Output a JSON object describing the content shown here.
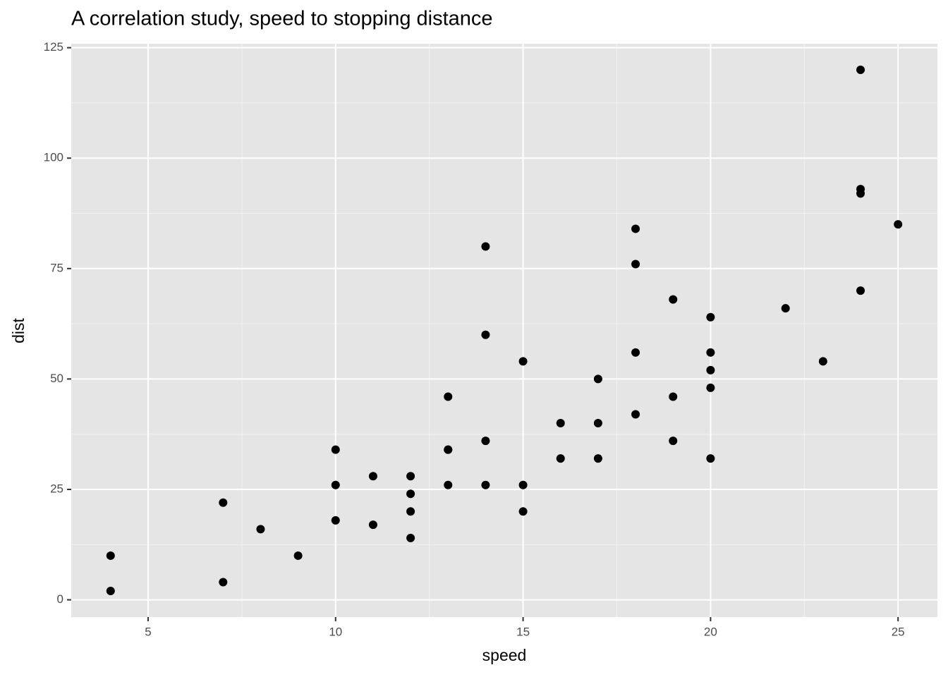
{
  "chart_data": {
    "type": "scatter",
    "title": "A correlation study, speed to stopping distance",
    "x_label": "speed",
    "y_label": "dist",
    "color": "#000000",
    "x": [
      4,
      4,
      7,
      7,
      8,
      9,
      10,
      10,
      10,
      11,
      11,
      12,
      12,
      12,
      12,
      13,
      13,
      13,
      13,
      14,
      14,
      14,
      14,
      15,
      15,
      15,
      16,
      16,
      17,
      17,
      17,
      18,
      18,
      18,
      18,
      19,
      19,
      19,
      20,
      20,
      20,
      20,
      20,
      22,
      23,
      24,
      24,
      24,
      24,
      25
    ],
    "values": [
      2,
      10,
      4,
      22,
      16,
      10,
      18,
      26,
      34,
      17,
      28,
      14,
      20,
      24,
      28,
      26,
      34,
      34,
      46,
      26,
      36,
      60,
      80,
      20,
      26,
      54,
      32,
      40,
      32,
      40,
      50,
      42,
      56,
      76,
      84,
      36,
      46,
      68,
      32,
      48,
      52,
      56,
      64,
      66,
      54,
      70,
      92,
      93,
      120,
      85
    ],
    "xlim": [
      2.95,
      26.05
    ],
    "ylim": [
      -3.9,
      125.9
    ],
    "xticks": [
      5,
      10,
      15,
      20,
      25
    ],
    "yticks": [
      0,
      25,
      50,
      75,
      100,
      125
    ],
    "x_minor_breaks": [
      7.5,
      12.5,
      17.5,
      22.5
    ],
    "y_minor_breaks": [
      12.5,
      37.5,
      62.5,
      87.5,
      112.5
    ],
    "grid": true
  }
}
